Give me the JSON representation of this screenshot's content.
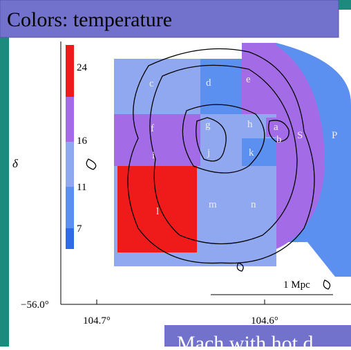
{
  "header": {
    "title": "Colors: temperature"
  },
  "caption": "Mach with hot d",
  "colorbar": {
    "ticks": [
      "24",
      "16",
      "11",
      "7"
    ]
  },
  "axes": {
    "y_label": "δ",
    "y_ticks": [
      "−56.0°"
    ],
    "x_ticks": [
      "104.7°",
      "104.6°"
    ]
  },
  "regions": [
    "c",
    "d",
    "e",
    "f",
    "g",
    "h",
    "a",
    "b",
    "S",
    "P",
    "i",
    "j",
    "k",
    "l",
    "m",
    "n"
  ],
  "scale_bar": "1 Mpc"
}
